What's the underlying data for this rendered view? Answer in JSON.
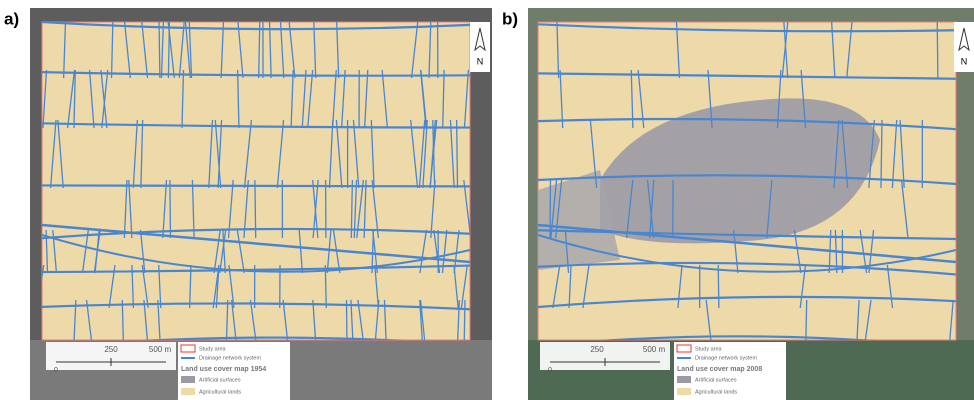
{
  "panels": [
    {
      "label": "a)",
      "north": "N",
      "scale": [
        "0",
        "250",
        "500 m"
      ],
      "legend": {
        "study_area": "Study area",
        "drainage": "Drainage network system",
        "title": "Land use cover map 1954",
        "classes": [
          "Artificial surfaces",
          "Agricultural lands"
        ]
      }
    },
    {
      "label": "b)",
      "north": "N",
      "scale": [
        "0",
        "250",
        "500 m"
      ],
      "legend": {
        "study_area": "Study area",
        "drainage": "Drainage network system",
        "title": "Land use cover map 2008",
        "classes": [
          "Artificial surfaces",
          "Agricultural lands"
        ]
      }
    }
  ]
}
